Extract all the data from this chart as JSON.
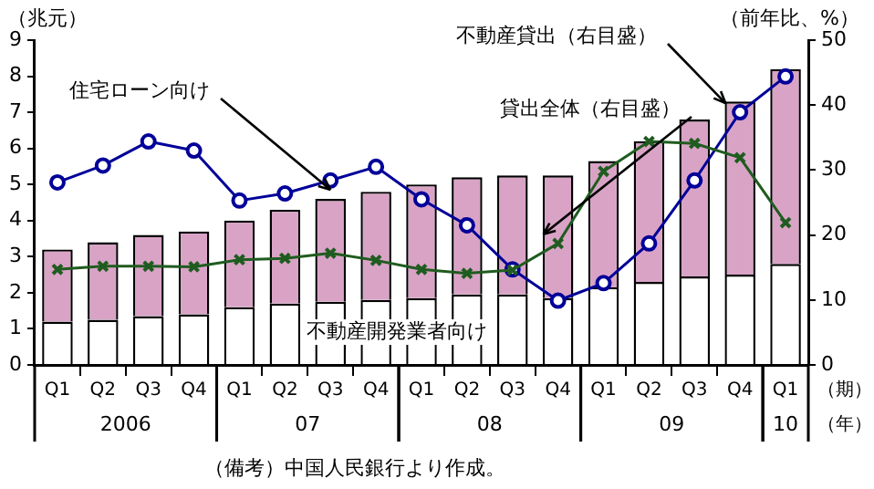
{
  "chart_data": {
    "type": "bar",
    "stacked": true,
    "ylabel": "（兆元）",
    "y2label": "（前年比、%）",
    "xlabel": "（期）",
    "categories": [
      "Q1",
      "Q2",
      "Q3",
      "Q4",
      "Q1",
      "Q2",
      "Q3",
      "Q4",
      "Q1",
      "Q2",
      "Q3",
      "Q4",
      "Q1",
      "Q2",
      "Q3",
      "Q4",
      "Q1"
    ],
    "series": [
      {
        "name": "不動産開発業者向け",
        "color": "#ffffff",
        "values": [
          1.2,
          1.25,
          1.35,
          1.4,
          1.6,
          1.7,
          1.75,
          1.8,
          1.85,
          1.95,
          1.95,
          1.85,
          2.15,
          2.3,
          2.45,
          2.5,
          2.8
        ]
      },
      {
        "name": "住宅ローン向け",
        "color": "#d9a3c6",
        "values": [
          2.0,
          2.15,
          2.25,
          2.3,
          2.4,
          2.6,
          2.85,
          3.0,
          3.15,
          3.25,
          3.3,
          3.4,
          3.5,
          3.9,
          4.35,
          4.8,
          5.4
        ]
      },
      {
        "name": "貸出全体（右目盛）",
        "type": "line",
        "axis": "y2",
        "marker": "cross",
        "color": "#1f5c1f",
        "values": [
          14.7,
          15.2,
          15.2,
          15.1,
          16.2,
          16.4,
          17.2,
          16.1,
          14.7,
          14.1,
          14.6,
          18.7,
          29.8,
          34.4,
          34.1,
          31.9,
          21.9
        ]
      },
      {
        "name": "不動産貸出（右目盛）",
        "type": "line",
        "axis": "y2",
        "marker": "circle",
        "color": "#000099",
        "values": [
          28.1,
          30.7,
          34.4,
          33.0,
          25.3,
          26.4,
          28.4,
          30.5,
          25.5,
          21.5,
          14.7,
          9.9,
          12.6,
          18.7,
          28.4,
          38.9,
          44.4
        ]
      }
    ],
    "ylim": [
      0,
      9
    ],
    "yticks": [
      0,
      1,
      2,
      3,
      4,
      5,
      6,
      7,
      8,
      9
    ],
    "y2lim": [
      0,
      50
    ],
    "y2ticks": [
      0,
      10,
      20,
      30,
      40,
      50
    ],
    "grid": false,
    "legend": false,
    "annotations": [
      "2006",
      "07",
      "08",
      "09",
      "10",
      "（年）",
      "（備考）中国人民銀行より作成。"
    ]
  }
}
